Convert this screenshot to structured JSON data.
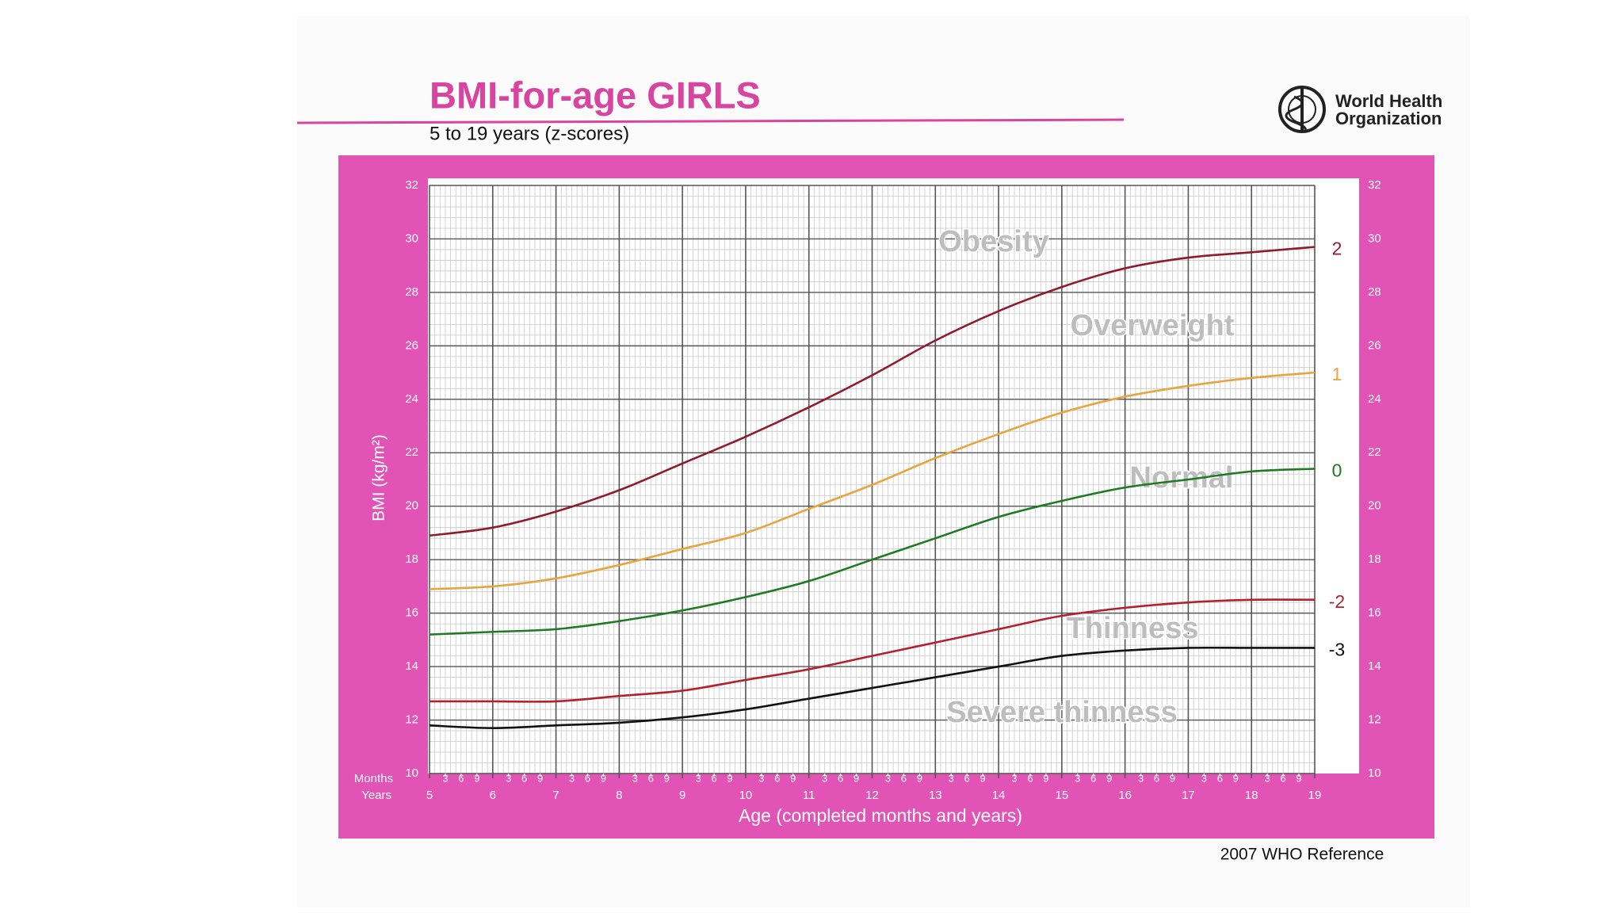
{
  "chart_data": {
    "type": "line",
    "title": "BMI-for-age  GIRLS",
    "subtitle": "5 to 19 years (z-scores)",
    "organization": [
      "World Health",
      "Organization"
    ],
    "source": "2007 WHO Reference",
    "y_label": "BMI (kg/m²)",
    "x_label": "Age (completed months and years)",
    "x_row_labels": [
      "Months",
      "Years"
    ],
    "annotations": [
      "Obesity",
      "Overweight",
      "Normal",
      "Thinness",
      "Severe thinness"
    ],
    "x": [
      5,
      6,
      7,
      8,
      9,
      10,
      11,
      12,
      13,
      14,
      15,
      16,
      17,
      18,
      19
    ],
    "series": [
      {
        "name": "2",
        "color": "#8e1b2e",
        "values": [
          18.9,
          19.2,
          19.8,
          20.6,
          21.6,
          22.6,
          23.7,
          24.9,
          26.2,
          27.3,
          28.2,
          28.9,
          29.3,
          29.5,
          29.7
        ]
      },
      {
        "name": "1",
        "color": "#e8a53e",
        "values": [
          16.9,
          17.0,
          17.3,
          17.8,
          18.4,
          19.0,
          19.9,
          20.8,
          21.8,
          22.7,
          23.5,
          24.1,
          24.5,
          24.8,
          25.0
        ]
      },
      {
        "name": "0",
        "color": "#1f7a22",
        "values": [
          15.2,
          15.3,
          15.4,
          15.7,
          16.1,
          16.6,
          17.2,
          18.0,
          18.8,
          19.6,
          20.2,
          20.7,
          21.0,
          21.3,
          21.4
        ]
      },
      {
        "name": "-2",
        "color": "#b3202f",
        "values": [
          12.7,
          12.7,
          12.7,
          12.9,
          13.1,
          13.5,
          13.9,
          14.4,
          14.9,
          15.4,
          15.9,
          16.2,
          16.4,
          16.5,
          16.5
        ]
      },
      {
        "name": "-3",
        "color": "#111111",
        "values": [
          11.8,
          11.7,
          11.8,
          11.9,
          12.1,
          12.4,
          12.8,
          13.2,
          13.6,
          14.0,
          14.4,
          14.6,
          14.7,
          14.7,
          14.7
        ]
      }
    ],
    "xlim": [
      5,
      19
    ],
    "xticks": [
      5,
      6,
      7,
      8,
      9,
      10,
      11,
      12,
      13,
      14,
      15,
      16,
      17,
      18,
      19
    ],
    "x_month_ticks": [
      {
        "value": 5.25,
        "label": "3"
      },
      {
        "value": 5.5,
        "label": "6"
      },
      {
        "value": 5.75,
        "label": "9"
      },
      {
        "value": 6.25,
        "label": "3"
      },
      {
        "value": 6.5,
        "label": "6"
      },
      {
        "value": 6.75,
        "label": "9"
      },
      {
        "value": 7.25,
        "label": "3"
      },
      {
        "value": 7.5,
        "label": "6"
      },
      {
        "value": 7.75,
        "label": "9"
      },
      {
        "value": 8.25,
        "label": "3"
      },
      {
        "value": 8.5,
        "label": "6"
      },
      {
        "value": 8.75,
        "label": "9"
      },
      {
        "value": 9.25,
        "label": "3"
      },
      {
        "value": 9.5,
        "label": "6"
      },
      {
        "value": 9.75,
        "label": "9"
      },
      {
        "value": 10.25,
        "label": "3"
      },
      {
        "value": 10.5,
        "label": "6"
      },
      {
        "value": 10.75,
        "label": "9"
      },
      {
        "value": 11.25,
        "label": "3"
      },
      {
        "value": 11.5,
        "label": "6"
      },
      {
        "value": 11.75,
        "label": "9"
      },
      {
        "value": 12.25,
        "label": "3"
      },
      {
        "value": 12.5,
        "label": "6"
      },
      {
        "value": 12.75,
        "label": "9"
      },
      {
        "value": 13.25,
        "label": "3"
      },
      {
        "value": 13.5,
        "label": "6"
      },
      {
        "value": 13.75,
        "label": "9"
      },
      {
        "value": 14.25,
        "label": "3"
      },
      {
        "value": 14.5,
        "label": "6"
      },
      {
        "value": 14.75,
        "label": "9"
      },
      {
        "value": 15.25,
        "label": "3"
      },
      {
        "value": 15.5,
        "label": "6"
      },
      {
        "value": 15.75,
        "label": "9"
      },
      {
        "value": 16.25,
        "label": "3"
      },
      {
        "value": 16.5,
        "label": "6"
      },
      {
        "value": 16.75,
        "label": "9"
      },
      {
        "value": 17.25,
        "label": "3"
      },
      {
        "value": 17.5,
        "label": "6"
      },
      {
        "value": 17.75,
        "label": "9"
      },
      {
        "value": 18.25,
        "label": "3"
      },
      {
        "value": 18.5,
        "label": "6"
      },
      {
        "value": 18.75,
        "label": "9"
      }
    ],
    "ylim": [
      10,
      32
    ],
    "yticks": [
      10,
      12,
      14,
      16,
      18,
      20,
      22,
      24,
      26,
      28,
      30,
      32
    ],
    "grid": true,
    "panel_color": "#e253b6",
    "title_color": "#d8449f"
  }
}
